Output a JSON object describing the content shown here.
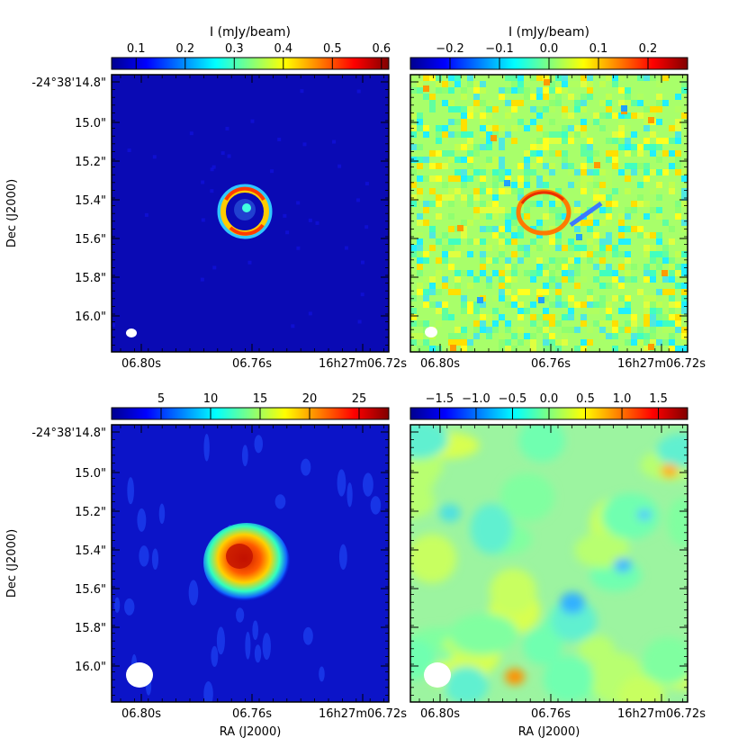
{
  "chart_data": [
    {
      "type": "heatmap",
      "panel": "top-left",
      "colorbar_label": "I (mJy/beam)",
      "colorbar_ticks": [
        "0.1",
        "0.2",
        "0.3",
        "0.4",
        "0.5",
        "0.6"
      ],
      "colorbar_values": [
        0.1,
        0.2,
        0.3,
        0.4,
        0.5,
        0.6
      ],
      "colorbar_range": [
        0.05,
        0.615
      ],
      "xticks": [
        "06.80s",
        "06.76s",
        "16h27m06.72s"
      ],
      "yticks": [
        "-24°38'14.8\"",
        "15.0\"",
        "15.2\"",
        "15.4\"",
        "15.6\"",
        "15.8\"",
        "16.0\""
      ],
      "xlabel": "",
      "ylabel": "Dec (J2000)",
      "feature": "ring",
      "ring_center_ra_s": 6.762,
      "ring_center_dec_arcsec": 15.45,
      "beam": "small"
    },
    {
      "type": "heatmap",
      "panel": "top-right",
      "colorbar_label": "I (mJy/beam)",
      "colorbar_ticks": [
        "−0.2",
        "−0.1",
        "0.0",
        "0.1",
        "0.2"
      ],
      "colorbar_values": [
        -0.2,
        -0.1,
        0.0,
        0.1,
        0.2
      ],
      "colorbar_range": [
        -0.28,
        0.28
      ],
      "xticks": [
        "06.80s",
        "06.76s",
        "16h27m06.72s"
      ],
      "yticks": [],
      "xlabel": "",
      "ylabel": "",
      "feature": "residual ring",
      "beam": "small"
    },
    {
      "type": "heatmap",
      "panel": "bottom-left",
      "colorbar_label": "",
      "colorbar_ticks": [
        "5",
        "10",
        "15",
        "20",
        "25"
      ],
      "colorbar_values": [
        5,
        10,
        15,
        20,
        25
      ],
      "colorbar_range": [
        0,
        28
      ],
      "xticks": [
        "06.80s",
        "06.76s",
        "16h27m06.72s"
      ],
      "yticks": [
        "-24°38'14.8\"",
        "15.0\"",
        "15.2\"",
        "15.4\"",
        "15.6\"",
        "15.8\"",
        "16.0\""
      ],
      "xlabel": "RA (J2000)",
      "ylabel": "Dec (J2000)",
      "feature": "blob",
      "beam": "large"
    },
    {
      "type": "heatmap",
      "panel": "bottom-right",
      "colorbar_label": "",
      "colorbar_ticks": [
        "−1.5",
        "−1.0",
        "−0.5",
        "0.0",
        "0.5",
        "1.0",
        "1.5"
      ],
      "colorbar_values": [
        -1.5,
        -1.0,
        -0.5,
        0.0,
        0.5,
        1.0,
        1.5
      ],
      "colorbar_range": [
        -1.9,
        1.9
      ],
      "xticks": [
        "06.80s",
        "06.76s",
        "16h27m06.72s"
      ],
      "yticks": [],
      "xlabel": "RA (J2000)",
      "ylabel": "",
      "feature": "smooth residual",
      "beam": "large"
    }
  ]
}
